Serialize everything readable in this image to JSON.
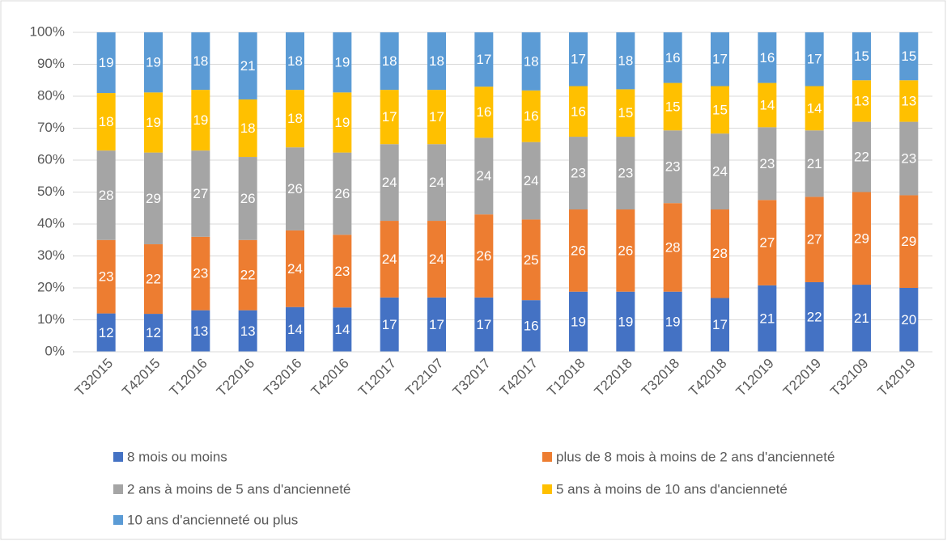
{
  "chart_data": {
    "type": "bar",
    "stacked": "percent",
    "categories": [
      "T32015",
      "T42015",
      "T12016",
      "T22016",
      "T32016",
      "T42016",
      "T12017",
      "T22107",
      "T32017",
      "T42017",
      "T12018",
      "T22018",
      "T32018",
      "T42018",
      "T12019",
      "T22019",
      "T32109",
      "T42019"
    ],
    "series": [
      {
        "name": "8 mois ou moins",
        "color": "#4472c4",
        "values": [
          12,
          12,
          13,
          13,
          14,
          14,
          17,
          17,
          17,
          16,
          19,
          19,
          19,
          17,
          21,
          22,
          21,
          20
        ]
      },
      {
        "name": "plus de 8 mois à moins de 2 ans d'ancienneté",
        "color": "#ed7d31",
        "values": [
          23,
          22,
          23,
          22,
          24,
          23,
          24,
          24,
          26,
          25,
          26,
          26,
          28,
          28,
          27,
          27,
          29,
          29
        ]
      },
      {
        "name": "2 ans à moins de 5 ans d'ancienneté",
        "color": "#a5a5a5",
        "values": [
          28,
          29,
          27,
          26,
          26,
          26,
          24,
          24,
          24,
          24,
          23,
          23,
          23,
          24,
          23,
          21,
          22,
          23
        ]
      },
      {
        "name": "5 ans à moins de 10 ans d'ancienneté",
        "color": "#ffc000",
        "values": [
          18,
          19,
          19,
          18,
          18,
          19,
          17,
          17,
          16,
          16,
          16,
          15,
          15,
          15,
          14,
          14,
          13,
          13
        ]
      },
      {
        "name": "10 ans d'ancienneté ou plus",
        "color": "#5b9bd5",
        "values": [
          19,
          19,
          18,
          21,
          18,
          19,
          18,
          18,
          17,
          18,
          17,
          18,
          16,
          17,
          16,
          17,
          15,
          15
        ]
      }
    ],
    "ylim": [
      0,
      100
    ],
    "yticks": [
      {
        "value": 0,
        "label": "0%"
      },
      {
        "value": 10,
        "label": "10%"
      },
      {
        "value": 20,
        "label": "20%"
      },
      {
        "value": 30,
        "label": "30%"
      },
      {
        "value": 40,
        "label": "40%"
      },
      {
        "value": 50,
        "label": "50%"
      },
      {
        "value": 60,
        "label": "60%"
      },
      {
        "value": 70,
        "label": "70%"
      },
      {
        "value": 80,
        "label": "80%"
      },
      {
        "value": 90,
        "label": "90%"
      },
      {
        "value": 100,
        "label": "100%"
      }
    ],
    "grid": true,
    "legend": "bottom"
  }
}
